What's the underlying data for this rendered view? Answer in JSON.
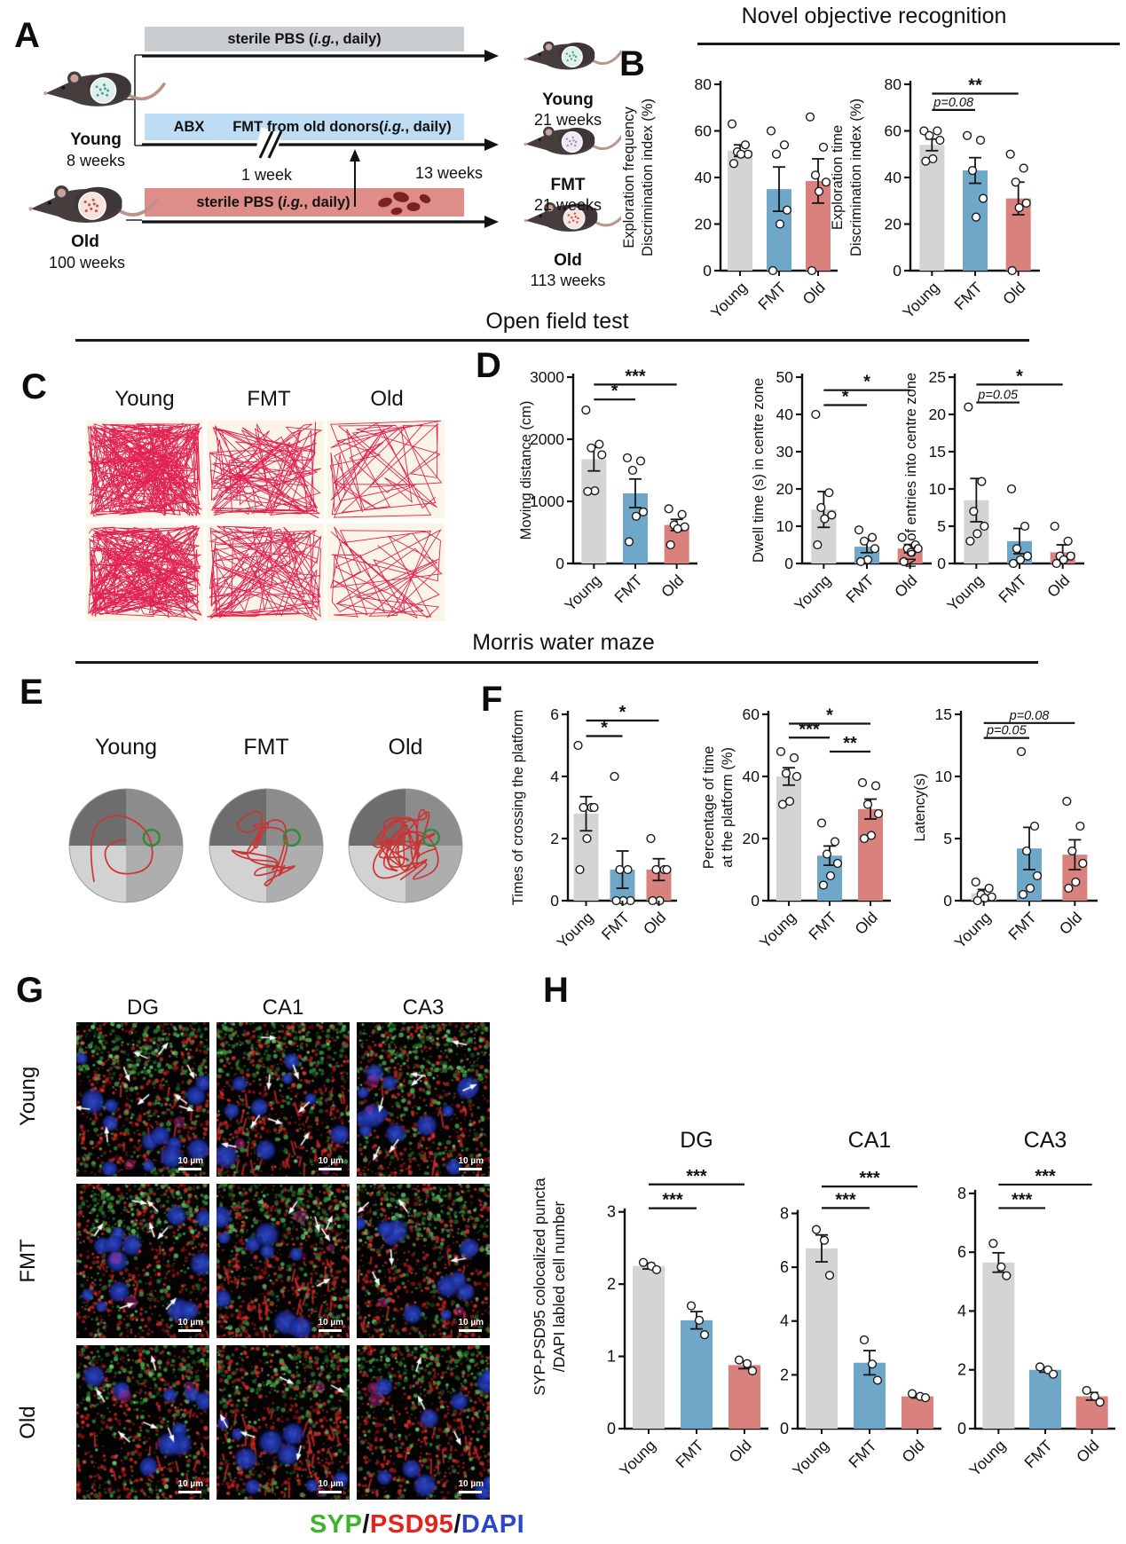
{
  "panel_labels": {
    "a": "A",
    "b": "B",
    "c": "C",
    "d": "D",
    "e": "E",
    "f": "F",
    "g": "G",
    "h": "H"
  },
  "icons": {
    "mouse": "mouse-icon",
    "feces": "feces-icon",
    "timeline_arrow": "arrow-right-icon",
    "fmt_transfer_arrow": "arrow-up-icon",
    "platform": "platform-ring-icon"
  },
  "panel_a": {
    "donor_groups": [
      {
        "name": "Young",
        "age": "8 weeks"
      },
      {
        "name": "Old",
        "age": "100 weeks"
      }
    ],
    "timelines": [
      {
        "prefix": "sterile PBS (",
        "italic": "i.g.",
        "suffix": ", daily)",
        "color": "#c9ccd1"
      },
      {
        "abx": "ABX",
        "prefix": "FMT  from old donors(",
        "italic": "i.g.",
        "suffix": ", daily)",
        "color": "#bedcf4"
      },
      {
        "prefix": "sterile PBS (",
        "italic": "i.g.",
        "suffix": ", daily)",
        "color": "#df8d89"
      }
    ],
    "week_marks": {
      "one": "1 week",
      "thirteen": "13 weeks"
    },
    "result_mice": [
      {
        "name": "Young",
        "age": "21 weeks"
      },
      {
        "name": "FMT",
        "age": "21 weeks"
      },
      {
        "name": "Old",
        "age": "113 weeks"
      }
    ]
  },
  "section_titles": {
    "b": "Novel objective recognition",
    "d": "Open field test",
    "f": "Morris water maze"
  },
  "panel_c": {
    "columns": [
      "Young",
      "FMT",
      "Old"
    ]
  },
  "panel_e": {
    "columns": [
      "Young",
      "FMT",
      "Old"
    ]
  },
  "panel_g": {
    "columns": [
      "DG",
      "CA1",
      "CA3"
    ],
    "rows": [
      "Young",
      "FMT",
      "Old"
    ],
    "scalebar": "10 µm"
  },
  "panel_h": {
    "ylabel_lines": [
      "SYP-PSD95 colocalized puncta",
      "/DAPI labled cell number"
    ]
  },
  "legend": {
    "parts": [
      {
        "text": "SYP",
        "color": "#3db32a"
      },
      {
        "text": "/",
        "color": "#111111"
      },
      {
        "text": "PSD95",
        "color": "#e8211d"
      },
      {
        "text": "/",
        "color": "#111111"
      },
      {
        "text": "DAPI",
        "color": "#2b46c8"
      }
    ]
  },
  "palette": {
    "young": "#d4d4d4",
    "fmt": "#6fa7c9",
    "old": "#d8817d",
    "axis": "#111111"
  },
  "chart_data": [
    {
      "id": "b1",
      "panel": "B",
      "type": "bar",
      "title": "",
      "ylabel_lines": [
        "Exploration frequency",
        "Discrimination index (%)"
      ],
      "categories": [
        "Young",
        "FMT",
        "Old"
      ],
      "means": [
        51.5,
        35,
        38.5
      ],
      "sems": [
        2.5,
        9.5,
        9.5
      ],
      "points": [
        [
          63,
          54,
          51,
          50,
          50,
          46
        ],
        [
          60,
          54,
          50,
          26,
          20,
          0
        ],
        [
          66,
          53,
          41,
          38,
          34,
          0
        ]
      ],
      "ylim": [
        0,
        80
      ],
      "yticks": [
        0,
        20,
        40,
        60,
        80
      ],
      "sig": []
    },
    {
      "id": "b2",
      "panel": "B",
      "type": "bar",
      "title": "",
      "ylabel_lines": [
        "Exploration time",
        "Discrimination index (%)"
      ],
      "categories": [
        "Young",
        "FMT",
        "Old"
      ],
      "means": [
        54,
        43,
        31
      ],
      "sems": [
        2.5,
        5.5,
        7
      ],
      "points": [
        [
          60,
          60,
          58,
          56,
          48,
          47
        ],
        [
          58,
          56,
          43,
          31,
          23
        ],
        [
          50,
          44,
          38,
          29,
          27,
          0
        ]
      ],
      "ylim": [
        0,
        80
      ],
      "yticks": [
        0,
        20,
        40,
        60,
        80
      ],
      "sig": [
        {
          "from": 0,
          "to": 2,
          "label": "**",
          "y": 76
        },
        {
          "from": 0,
          "to": 1,
          "label": "p=0.08",
          "y": 69,
          "italic": true
        }
      ]
    },
    {
      "id": "d1",
      "panel": "D",
      "type": "bar",
      "title": "",
      "ylabel_lines": [
        "Moving distance (cm)"
      ],
      "categories": [
        "Young",
        "FMT",
        "Old"
      ],
      "means": [
        1680,
        1130,
        620
      ],
      "sems": [
        190,
        230,
        90
      ],
      "points": [
        [
          2470,
          1920,
          1860,
          1750,
          1170,
          1160
        ],
        [
          1700,
          1650,
          1500,
          830,
          760,
          350
        ],
        [
          880,
          790,
          620,
          590,
          560,
          300
        ]
      ],
      "ylim": [
        0,
        3000
      ],
      "yticks": [
        0,
        1000,
        2000,
        3000
      ],
      "sig": [
        {
          "from": 0,
          "to": 2,
          "label": "***",
          "y": 2880
        },
        {
          "from": 0,
          "to": 1,
          "label": "*",
          "y": 2640
        }
      ]
    },
    {
      "id": "d2",
      "panel": "D",
      "type": "bar",
      "title": "",
      "ylabel_lines": [
        "Dwell time (s) in centre zone"
      ],
      "categories": [
        "Young",
        "FMT",
        "Old"
      ],
      "means": [
        14.5,
        4.5,
        4
      ],
      "sems": [
        4.8,
        1.6,
        1.1
      ],
      "points": [
        [
          40,
          19,
          15,
          13,
          12,
          5
        ],
        [
          9,
          7,
          6,
          4,
          1,
          0.5
        ],
        [
          7,
          5,
          4,
          4,
          3,
          0.5
        ]
      ],
      "ylim": [
        0,
        50
      ],
      "yticks": [
        0,
        10,
        20,
        30,
        40,
        50
      ],
      "sig": [
        {
          "from": 0,
          "to": 2,
          "label": "*",
          "y": 46.5
        },
        {
          "from": 0,
          "to": 1,
          "label": "*",
          "y": 42.5
        }
      ]
    },
    {
      "id": "d3",
      "panel": "D",
      "type": "bar",
      "title": "",
      "ylabel_lines": [
        "No. of entries into centre zone"
      ],
      "categories": [
        "Young",
        "FMT",
        "Old"
      ],
      "means": [
        8.5,
        3,
        1.5
      ],
      "sems": [
        2.9,
        1.7,
        1
      ],
      "points": [
        [
          21,
          11,
          7,
          5,
          4,
          3
        ],
        [
          10,
          5,
          2,
          1,
          0.5,
          0
        ],
        [
          5,
          3,
          1,
          1,
          0.5,
          0
        ]
      ],
      "ylim": [
        0,
        25
      ],
      "yticks": [
        0,
        5,
        10,
        15,
        20,
        25
      ],
      "sig": [
        {
          "from": 0,
          "to": 2,
          "label": "*",
          "y": 24
        },
        {
          "from": 0,
          "to": 1,
          "label": "p=0.05",
          "y": 21.6,
          "italic": true
        }
      ]
    },
    {
      "id": "f1",
      "panel": "F",
      "type": "bar",
      "title": "",
      "ylabel_lines": [
        "Times of crossing the platform"
      ],
      "categories": [
        "Young",
        "FMT",
        "Old"
      ],
      "means": [
        2.8,
        1.0,
        1.0
      ],
      "sems": [
        0.55,
        0.6,
        0.35
      ],
      "points": [
        [
          5,
          3,
          3,
          3,
          2,
          1
        ],
        [
          4,
          1,
          1,
          0,
          0,
          0
        ],
        [
          2,
          1,
          1,
          1,
          0,
          0
        ]
      ],
      "ylim": [
        0,
        6
      ],
      "yticks": [
        0,
        2,
        4,
        6
      ],
      "sig": [
        {
          "from": 0,
          "to": 2,
          "label": "*",
          "y": 5.8
        },
        {
          "from": 0,
          "to": 1,
          "label": "*",
          "y": 5.3
        }
      ]
    },
    {
      "id": "f2",
      "panel": "F",
      "type": "bar",
      "title": "",
      "ylabel_lines": [
        "Percentage of time",
        "at the platform (%)"
      ],
      "categories": [
        "Young",
        "FMT",
        "Old"
      ],
      "means": [
        40,
        14.5,
        29.5
      ],
      "sems": [
        2.8,
        3.1,
        3.2
      ],
      "points": [
        [
          48,
          46,
          41,
          40,
          32,
          31
        ],
        [
          25,
          19,
          15,
          12,
          8,
          5
        ],
        [
          38,
          37,
          31,
          28,
          21,
          20
        ]
      ],
      "ylim": [
        0,
        60
      ],
      "yticks": [
        0,
        20,
        40,
        60
      ],
      "sig": [
        {
          "from": 0,
          "to": 2,
          "label": "*",
          "y": 57
        },
        {
          "from": 0,
          "to": 1,
          "label": "***",
          "y": 52.5
        },
        {
          "from": 1,
          "to": 2,
          "label": "**",
          "y": 48
        }
      ]
    },
    {
      "id": "f3",
      "panel": "F",
      "type": "bar",
      "title": "",
      "ylabel_lines": [
        "Latency(s)"
      ],
      "categories": [
        "Young",
        "FMT",
        "Old"
      ],
      "means": [
        0.6,
        4.2,
        3.7
      ],
      "sems": [
        0.3,
        1.7,
        1.2
      ],
      "points": [
        [
          1.5,
          1,
          0.5,
          0.3,
          0.2,
          0
        ],
        [
          12,
          6,
          4,
          2,
          1,
          0.5
        ],
        [
          8,
          6,
          4,
          3,
          1.5,
          1
        ]
      ],
      "ylim": [
        0,
        15
      ],
      "yticks": [
        0,
        5,
        10,
        15
      ],
      "sig": [
        {
          "from": 0,
          "to": 2,
          "label": "p=0.08",
          "y": 14.3,
          "italic": true
        },
        {
          "from": 0,
          "to": 1,
          "label": "p=0.05",
          "y": 13.1,
          "italic": true
        }
      ]
    },
    {
      "id": "h_dg",
      "panel": "H",
      "type": "bar",
      "title": "DG",
      "ylabel_lines": [],
      "categories": [
        "Young",
        "FMT",
        "Old"
      ],
      "means": [
        2.25,
        1.5,
        0.88
      ],
      "sems": [
        0.04,
        0.12,
        0.05
      ],
      "points": [
        [
          2.3,
          2.25,
          2.2
        ],
        [
          1.7,
          1.5,
          1.3
        ],
        [
          0.95,
          0.9,
          0.8
        ]
      ],
      "ylim": [
        0,
        3.5
      ],
      "yticks": [
        0,
        1,
        2,
        3
      ],
      "sig": [
        {
          "from": 0,
          "to": 2,
          "label": "***",
          "y": 3.38
        },
        {
          "from": 0,
          "to": 1,
          "label": "***",
          "y": 3.05
        }
      ]
    },
    {
      "id": "h_ca1",
      "panel": "H",
      "type": "bar",
      "title": "CA1",
      "ylabel_lines": [],
      "categories": [
        "Young",
        "FMT",
        "Old"
      ],
      "means": [
        6.7,
        2.45,
        1.2
      ],
      "sems": [
        0.5,
        0.45,
        0.06
      ],
      "points": [
        [
          7.4,
          7.0,
          5.7
        ],
        [
          3.3,
          2.4,
          1.8
        ],
        [
          1.3,
          1.2,
          1.15
        ]
      ],
      "ylim": [
        0,
        9.4
      ],
      "yticks": [
        0,
        2,
        4,
        6,
        8
      ],
      "sig": [
        {
          "from": 0,
          "to": 2,
          "label": "***",
          "y": 9.0
        },
        {
          "from": 0,
          "to": 1,
          "label": "***",
          "y": 8.2
        }
      ]
    },
    {
      "id": "h_ca3",
      "panel": "H",
      "type": "bar",
      "title": "CA3",
      "ylabel_lines": [],
      "categories": [
        "Young",
        "FMT",
        "Old"
      ],
      "means": [
        5.65,
        2.0,
        1.1
      ],
      "sems": [
        0.33,
        0.08,
        0.13
      ],
      "points": [
        [
          6.3,
          5.5,
          5.2
        ],
        [
          2.1,
          2.0,
          1.85
        ],
        [
          1.3,
          1.1,
          0.9
        ]
      ],
      "ylim": [
        0,
        8.6
      ],
      "yticks": [
        0,
        2,
        4,
        6,
        8
      ],
      "sig": [
        {
          "from": 0,
          "to": 2,
          "label": "***",
          "y": 8.3
        },
        {
          "from": 0,
          "to": 1,
          "label": "***",
          "y": 7.5
        }
      ]
    }
  ]
}
